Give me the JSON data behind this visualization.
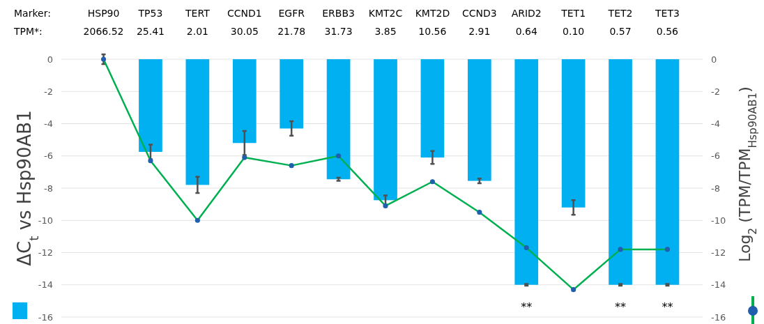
{
  "chart_data": {
    "type": "bar",
    "categories": [
      "HSP90",
      "TP53",
      "TERT",
      "CCND1",
      "EGFR",
      "ERBB3",
      "KMT2C",
      "KMT2D",
      "CCND3",
      "ARID2",
      "TET1",
      "TET2",
      "TET3"
    ],
    "series": [
      {
        "color": "#00b0f0",
        "values": [
          0,
          -5.75,
          -7.8,
          -5.2,
          -4.3,
          -7.45,
          -8.75,
          -6.1,
          -7.55,
          -14,
          -9.2,
          -14,
          -14
        ],
        "errors": [
          0.3,
          0.45,
          0.5,
          0.75,
          0.45,
          0.1,
          0.3,
          0.4,
          0.15,
          0.05,
          0.45,
          0.05,
          0.05
        ]
      },
      {
        "type": "line",
        "axis": "y2",
        "color": "#00b050",
        "values": [
          0,
          -6.3,
          -10.0,
          -6.1,
          -6.6,
          -6.0,
          -9.1,
          -7.6,
          -9.5,
          -11.7,
          -14.3,
          -11.8,
          -11.8
        ]
      }
    ],
    "ylabel": "ΔC$_{t}$ vs Hsp90AB1",
    "y2label": "Log$_{2}$ (TPM/TPM$_{Hsp90AB1}$)",
    "ylim": [
      -16,
      0
    ],
    "yticks": [
      -16,
      -14,
      -12,
      -10,
      -8,
      -6,
      -4,
      -2,
      0
    ],
    "y2lim": [
      -16,
      0
    ],
    "y2ticks": [
      -16,
      -14,
      -12,
      -10,
      -8,
      -6,
      -4,
      -2,
      0
    ],
    "grid": "y",
    "marker": "circle",
    "annotations": [
      "Marker:",
      "TPM*:",
      "2066.52",
      "25.41",
      "2.01",
      "30.05",
      "21.78",
      "31.73",
      "3.85",
      "10.56",
      "2.91",
      "0.64",
      "0.10",
      "0.57",
      "0.56",
      {
        "text": "**",
        "x": "ARID2",
        "y": -14
      },
      {
        "text": "**",
        "x": "TET2",
        "y": -14
      },
      {
        "text": "**",
        "x": "TET3",
        "y": -14
      }
    ]
  }
}
